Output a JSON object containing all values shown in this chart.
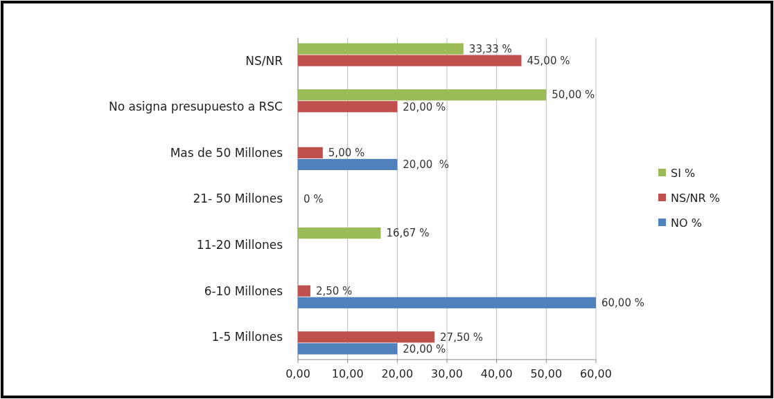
{
  "chart_data": {
    "type": "bar",
    "orientation": "horizontal",
    "categories": [
      "NS/NR",
      "No asigna presupuesto a RSC",
      "Mas de 50 Millones",
      "21- 50 Millones",
      "11-20 Millones",
      "6-10 Millones",
      "1-5 Millones"
    ],
    "series": [
      {
        "name": "SI %",
        "color": "#9bbb59",
        "values": [
          33.33,
          50,
          0,
          0,
          16.67,
          0,
          0
        ],
        "value_labels": [
          "33,33 %",
          "50,00 %",
          null,
          null,
          "16,67 %",
          null,
          null
        ]
      },
      {
        "name": "NS/NR %",
        "color": "#c0504d",
        "values": [
          45,
          20,
          5,
          0,
          0,
          2.5,
          27.5
        ],
        "value_labels": [
          "45,00 %",
          "20,00 %",
          "5,00 %",
          "0 %",
          null,
          "2,50 %",
          "27,50 %"
        ]
      },
      {
        "name": "NO %",
        "color": "#4f81bd",
        "values": [
          0,
          0,
          20,
          0,
          0,
          60,
          20
        ],
        "value_labels": [
          null,
          null,
          "20,00  %",
          null,
          null,
          "60,00 %",
          "20,00 %"
        ]
      }
    ],
    "xlim": [
      0,
      60
    ],
    "xticks": [
      {
        "value": 0,
        "label": "0,00"
      },
      {
        "value": 10,
        "label": "10,00"
      },
      {
        "value": 20,
        "label": "20,00"
      },
      {
        "value": 30,
        "label": "30,00"
      },
      {
        "value": 40,
        "label": "40,00"
      },
      {
        "value": 50,
        "label": "50,00"
      },
      {
        "value": 60,
        "label": "60,00"
      }
    ],
    "grid": "x",
    "legend": "right"
  }
}
